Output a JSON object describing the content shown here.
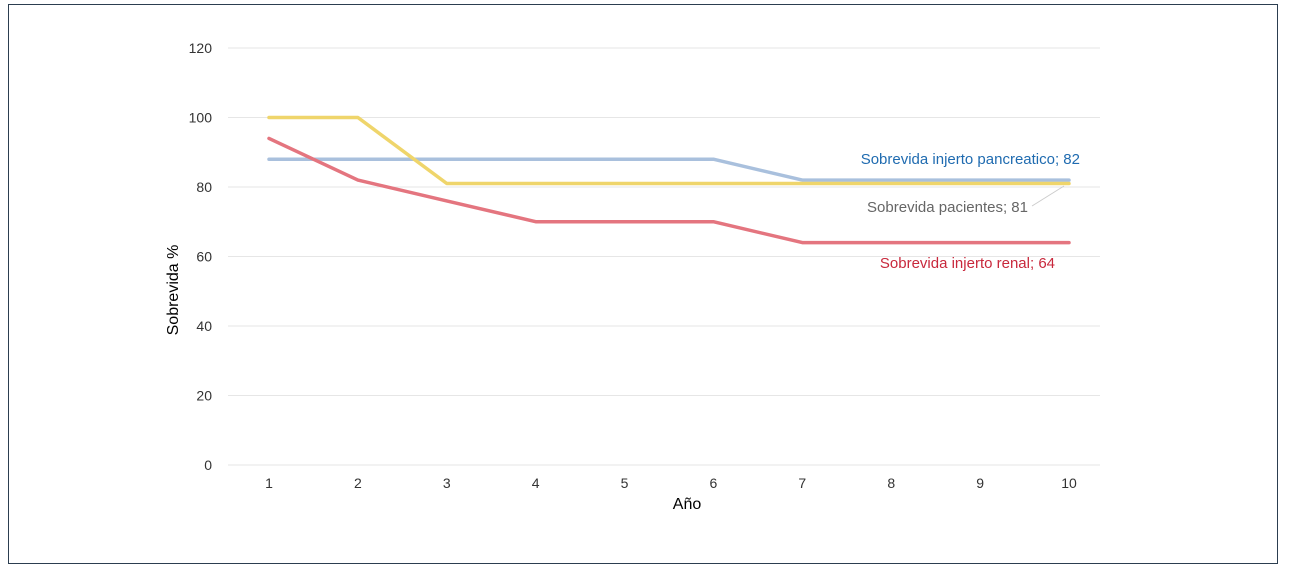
{
  "chart_data": {
    "type": "line",
    "xlabel": "Año",
    "ylabel": "Sobrevida %",
    "x": [
      1,
      2,
      3,
      4,
      5,
      6,
      7,
      8,
      9,
      10
    ],
    "ylim": [
      0,
      120
    ],
    "yticks": [
      0,
      20,
      40,
      60,
      80,
      100,
      120
    ],
    "grid": true,
    "series": [
      {
        "name": "Sobrevida injerto pancreatico",
        "label": "Sobrevida injerto pancreatico; 82",
        "color": "#a9c0dd",
        "label_color": "#1f6bb0",
        "values": [
          88,
          88,
          88,
          88,
          88,
          88,
          82,
          82,
          82,
          82
        ]
      },
      {
        "name": "Sobrevida pacientes",
        "label": "Sobrevida pacientes; 81",
        "color": "#efd56b",
        "label_color": "#666666",
        "values": [
          100,
          100,
          81,
          81,
          81,
          81,
          81,
          81,
          81,
          81
        ]
      },
      {
        "name": "Sobrevida injerto renal",
        "label": "Sobrevida injerto renal; 64",
        "color": "#e4757f",
        "label_color": "#c8283c",
        "values": [
          94,
          82,
          76,
          70,
          70,
          70,
          64,
          64,
          64,
          64
        ]
      }
    ]
  }
}
